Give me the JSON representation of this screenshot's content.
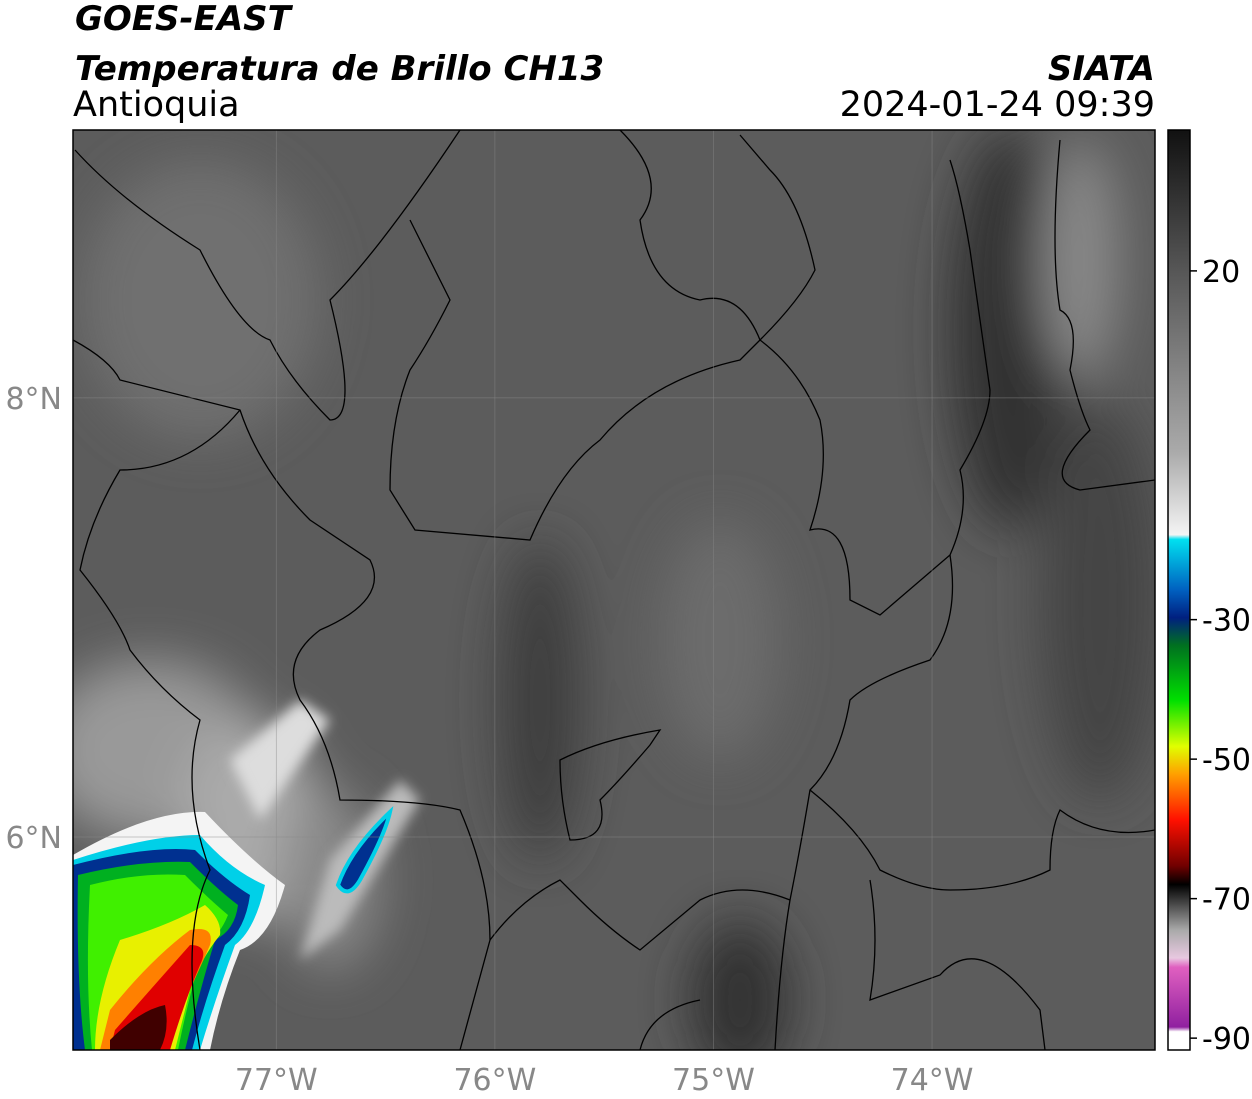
{
  "map": {
    "title": "GOES-EAST",
    "subtitle": "Temperatura de Brillo CH13",
    "region": "Antioquia",
    "source": "SIATA",
    "datetime": "2024-01-24 09:39",
    "lonlim": [
      -77.93,
      -72.98
    ],
    "latlim": [
      5.03,
      9.22
    ],
    "lonticks": [
      {
        "value": -77,
        "label": "77°W"
      },
      {
        "value": -76,
        "label": "76°W"
      },
      {
        "value": -75,
        "label": "75°W"
      },
      {
        "value": -74,
        "label": "74°W"
      }
    ],
    "latticks": [
      {
        "value": 8,
        "label": "8°N"
      },
      {
        "value": 6,
        "label": "6°N"
      }
    ],
    "grid": true,
    "colorbar": {
      "lim": [
        -91.7,
        40.2
      ],
      "ticks": [
        20,
        -30,
        -50,
        -70,
        -90
      ]
    }
  }
}
